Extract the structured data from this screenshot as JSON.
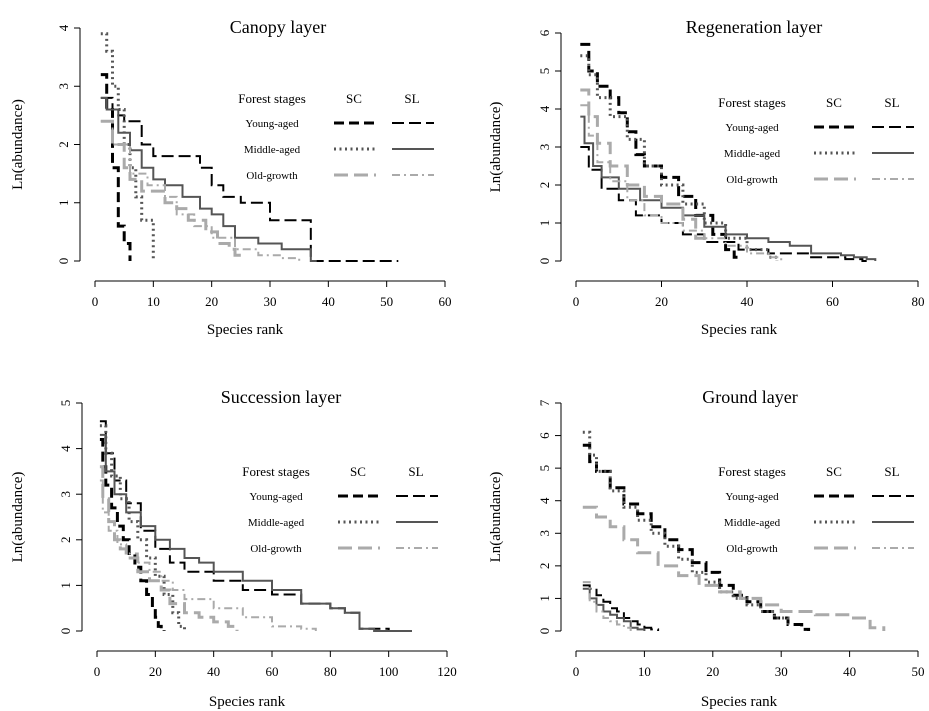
{
  "chart_data": [
    {
      "type": "line",
      "title": "Canopy layer",
      "xlabel": "Species rank",
      "ylabel": "Ln(abundance)",
      "xlim": [
        0,
        60
      ],
      "ylim": [
        0,
        4
      ],
      "xticks": [
        "0",
        "10",
        "20",
        "30",
        "40",
        "50",
        "60"
      ],
      "yticks": [
        "0",
        "1",
        "2",
        "3",
        "4"
      ],
      "legend": {
        "title": "Forest stages",
        "col_sc": "SC",
        "col_sl": "SL",
        "stages": [
          "Young-aged",
          "Middle-aged",
          "Old-growth"
        ]
      },
      "series": [
        {
          "stage": "Young-aged",
          "method": "SC",
          "color": "#000000",
          "x": [
            1,
            2,
            3,
            4,
            5,
            6
          ],
          "y": [
            3.2,
            2.6,
            1.6,
            0.6,
            0.3,
            0
          ]
        },
        {
          "stage": "Young-aged",
          "method": "SL",
          "color": "#000000",
          "x": [
            1,
            3,
            5,
            8,
            10,
            14,
            18,
            20,
            22,
            25,
            30,
            36,
            37,
            40,
            52
          ],
          "y": [
            2.8,
            2.5,
            2.4,
            2.0,
            1.8,
            1.8,
            1.6,
            1.3,
            1.1,
            1.0,
            0.7,
            0.7,
            0.0,
            0.0,
            0.0
          ]
        },
        {
          "stage": "Middle-aged",
          "method": "SC",
          "color": "#555555",
          "x": [
            1,
            2,
            3,
            4,
            5,
            6,
            7,
            8,
            10
          ],
          "y": [
            3.9,
            3.6,
            3.0,
            2.6,
            2.0,
            1.6,
            1.1,
            0.7,
            0
          ]
        },
        {
          "stage": "Middle-aged",
          "method": "SL",
          "color": "#555555",
          "x": [
            1,
            2,
            4,
            6,
            8,
            10,
            12,
            15,
            18,
            20,
            22,
            24,
            28,
            32,
            36,
            37,
            38
          ],
          "y": [
            2.8,
            2.6,
            2.2,
            1.9,
            1.6,
            1.4,
            1.3,
            1.1,
            0.9,
            0.8,
            0.6,
            0.4,
            0.3,
            0.2,
            0.2,
            0.0,
            0.0
          ]
        },
        {
          "stage": "Old-growth",
          "method": "SC",
          "color": "#aaaaaa",
          "x": [
            1,
            3,
            5,
            6,
            8,
            10,
            12,
            14,
            16,
            19,
            21,
            23,
            24,
            25
          ],
          "y": [
            2.4,
            2.0,
            1.6,
            1.4,
            1.2,
            1.2,
            1.0,
            0.9,
            0.7,
            0.5,
            0.3,
            0.2,
            0.1,
            0.0
          ]
        },
        {
          "stage": "Old-growth",
          "method": "SL",
          "color": "#aaaaaa",
          "x": [
            1,
            3,
            6,
            9,
            12,
            14,
            17,
            20,
            24,
            28,
            32,
            35
          ],
          "y": [
            2.4,
            2.0,
            1.5,
            1.3,
            1.1,
            0.8,
            0.6,
            0.4,
            0.2,
            0.1,
            0.05,
            0.0
          ]
        }
      ]
    },
    {
      "type": "line",
      "title": "Regeneration layer",
      "xlabel": "Species rank",
      "ylabel": "Ln(abundance)",
      "xlim": [
        0,
        80
      ],
      "ylim": [
        0,
        6
      ],
      "xticks": [
        "0",
        "20",
        "40",
        "60",
        "80"
      ],
      "yticks": [
        "0",
        "1",
        "2",
        "3",
        "4",
        "5",
        "6"
      ],
      "legend": {
        "title": "Forest stages",
        "col_sc": "SC",
        "col_sl": "SL",
        "stages": [
          "Young-aged",
          "Middle-aged",
          "Old-growth"
        ]
      },
      "series": [
        {
          "stage": "Young-aged",
          "method": "SC",
          "color": "#000000",
          "x": [
            1,
            3,
            5,
            8,
            10,
            12,
            14,
            16,
            20,
            24,
            28,
            32,
            35,
            37,
            38
          ],
          "y": [
            5.7,
            5.0,
            4.6,
            4.3,
            3.9,
            3.4,
            2.8,
            2.5,
            2.2,
            1.7,
            1.2,
            0.7,
            0.3,
            0.1,
            0.0
          ]
        },
        {
          "stage": "Young-aged",
          "method": "SL",
          "color": "#000000",
          "x": [
            1,
            3,
            6,
            10,
            14,
            20,
            25,
            30,
            38,
            45,
            55,
            63,
            65,
            67,
            68
          ],
          "y": [
            3.0,
            2.4,
            1.9,
            1.6,
            1.2,
            1.0,
            0.7,
            0.5,
            0.3,
            0.2,
            0.1,
            0.05,
            0.05,
            0.0,
            0.0
          ]
        },
        {
          "stage": "Middle-aged",
          "method": "SC",
          "color": "#555555",
          "x": [
            1,
            3,
            5,
            8,
            12,
            16,
            20,
            25,
            30,
            35,
            40,
            45,
            47
          ],
          "y": [
            5.4,
            4.9,
            4.3,
            3.8,
            3.2,
            2.5,
            2.0,
            1.5,
            1.0,
            0.6,
            0.3,
            0.1,
            0.0
          ]
        },
        {
          "stage": "Middle-aged",
          "method": "SL",
          "color": "#555555",
          "x": [
            1,
            2,
            4,
            6,
            10,
            15,
            20,
            25,
            30,
            35,
            40,
            45,
            50,
            55,
            60,
            62,
            65,
            68,
            70
          ],
          "y": [
            3.8,
            3.1,
            2.5,
            2.2,
            1.9,
            1.6,
            1.4,
            1.2,
            0.9,
            0.7,
            0.6,
            0.5,
            0.4,
            0.2,
            0.2,
            0.15,
            0.1,
            0.05,
            0.0
          ]
        },
        {
          "stage": "Old-growth",
          "method": "SC",
          "color": "#aaaaaa",
          "x": [
            1,
            3,
            5,
            8,
            12,
            16,
            20,
            25,
            28,
            30
          ],
          "y": [
            4.5,
            3.8,
            3.1,
            2.5,
            2.0,
            1.7,
            1.5,
            1.1,
            0.6,
            0.4
          ]
        },
        {
          "stage": "Old-growth",
          "method": "SL",
          "color": "#aaaaaa",
          "x": [
            1,
            3,
            5,
            8,
            12,
            16,
            20,
            25,
            30,
            35,
            40,
            45,
            48
          ],
          "y": [
            4.1,
            3.3,
            2.6,
            2.1,
            1.6,
            1.2,
            1.0,
            0.8,
            0.6,
            0.4,
            0.2,
            0.1,
            0.0
          ]
        }
      ]
    },
    {
      "type": "line",
      "title": "Succession layer",
      "xlabel": "Species rank",
      "ylabel": "Ln(abundance)",
      "xlim": [
        0,
        120
      ],
      "ylim": [
        0,
        5
      ],
      "xticks": [
        "0",
        "20",
        "40",
        "60",
        "80",
        "100",
        "120"
      ],
      "yticks": [
        "0",
        "1",
        "2",
        "3",
        "4",
        "5"
      ],
      "legend": {
        "title": "Forest stages",
        "col_sc": "SC",
        "col_sl": "SL",
        "stages": [
          "Young-aged",
          "Middle-aged",
          "Old-growth"
        ]
      },
      "series": [
        {
          "stage": "Young-aged",
          "method": "SC",
          "color": "#000000",
          "x": [
            1,
            2,
            3,
            5,
            7,
            9,
            11,
            13,
            15,
            17,
            19,
            20,
            21,
            22,
            23
          ],
          "y": [
            4.2,
            3.6,
            3.2,
            2.7,
            2.3,
            2.0,
            1.7,
            1.4,
            1.1,
            0.8,
            0.5,
            0.3,
            0.1,
            0.05,
            0.0
          ]
        },
        {
          "stage": "Young-aged",
          "method": "SL",
          "color": "#000000",
          "x": [
            1,
            3,
            6,
            10,
            15,
            20,
            25,
            30,
            40,
            50,
            60,
            70,
            80,
            85,
            90,
            100,
            106
          ],
          "y": [
            4.6,
            3.9,
            3.3,
            2.8,
            2.2,
            1.8,
            1.5,
            1.3,
            1.1,
            0.9,
            0.8,
            0.6,
            0.5,
            0.4,
            0.05,
            0.0,
            0.0
          ]
        },
        {
          "stage": "Middle-aged",
          "method": "SC",
          "color": "#555555",
          "x": [
            1,
            3,
            5,
            8,
            11,
            14,
            17,
            20,
            23,
            26,
            28,
            30
          ],
          "y": [
            4.5,
            3.9,
            3.4,
            2.9,
            2.4,
            2.0,
            1.6,
            1.2,
            0.8,
            0.4,
            0.1,
            0.0
          ]
        },
        {
          "stage": "Middle-aged",
          "method": "SL",
          "color": "#555555",
          "x": [
            1,
            3,
            6,
            10,
            15,
            20,
            25,
            30,
            35,
            40,
            50,
            60,
            70,
            80,
            85,
            90,
            95,
            104,
            108
          ],
          "y": [
            4.3,
            3.5,
            3.0,
            2.6,
            2.3,
            2.0,
            1.8,
            1.6,
            1.5,
            1.3,
            1.1,
            0.9,
            0.6,
            0.5,
            0.4,
            0.05,
            0.0,
            0.0,
            0.0
          ]
        },
        {
          "stage": "Old-growth",
          "method": "SC",
          "color": "#aaaaaa",
          "x": [
            1,
            2,
            4,
            6,
            8,
            10,
            14,
            18,
            22,
            25,
            30,
            35,
            40,
            45,
            48
          ],
          "y": [
            3.6,
            2.9,
            2.4,
            2.0,
            1.8,
            1.6,
            1.3,
            1.1,
            0.9,
            0.6,
            0.4,
            0.3,
            0.2,
            0.1,
            0.0
          ]
        },
        {
          "stage": "Old-growth",
          "method": "SL",
          "color": "#aaaaaa",
          "x": [
            1,
            2,
            4,
            7,
            10,
            14,
            18,
            22,
            26,
            30,
            40,
            50,
            60,
            70,
            75
          ],
          "y": [
            3.3,
            2.6,
            2.2,
            1.9,
            1.7,
            1.5,
            1.3,
            1.1,
            0.9,
            0.7,
            0.5,
            0.3,
            0.1,
            0.05,
            0.0
          ]
        }
      ]
    },
    {
      "type": "line",
      "title": "Ground layer",
      "xlabel": "Species rank",
      "ylabel": "Ln(abundance)",
      "xlim": [
        0,
        50
      ],
      "ylim": [
        0,
        7
      ],
      "xticks": [
        "0",
        "10",
        "20",
        "30",
        "40",
        "50"
      ],
      "yticks": [
        "0",
        "1",
        "2",
        "3",
        "4",
        "5",
        "6",
        "7"
      ],
      "legend": {
        "title": "Forest stages",
        "col_sc": "SC",
        "col_sl": "SL",
        "stages": [
          "Young-aged",
          "Middle-aged",
          "Old-growth"
        ]
      },
      "series": [
        {
          "stage": "Young-aged",
          "method": "SC",
          "color": "#000000",
          "x": [
            1,
            2,
            3,
            5,
            7,
            9,
            11,
            13,
            15,
            17,
            19,
            21,
            23,
            25,
            27,
            29,
            31,
            33,
            34
          ],
          "y": [
            5.7,
            5.2,
            4.9,
            4.4,
            3.9,
            3.6,
            3.2,
            2.8,
            2.5,
            2.1,
            1.8,
            1.4,
            1.1,
            0.9,
            0.6,
            0.4,
            0.2,
            0.05,
            0.0
          ]
        },
        {
          "stage": "Young-aged",
          "method": "SL",
          "color": "#000000",
          "x": [
            1,
            2,
            3,
            4,
            5,
            6,
            7,
            8,
            9,
            10,
            11,
            12
          ],
          "y": [
            1.4,
            1.3,
            1.1,
            0.9,
            0.7,
            0.6,
            0.4,
            0.3,
            0.2,
            0.1,
            0.05,
            0.0
          ]
        },
        {
          "stage": "Middle-aged",
          "method": "SC",
          "color": "#555555",
          "x": [
            1,
            2,
            3,
            5,
            7,
            9,
            11,
            13,
            15,
            17,
            19,
            21,
            23,
            25,
            27,
            29,
            31
          ],
          "y": [
            6.1,
            5.4,
            4.9,
            4.3,
            3.8,
            3.4,
            3.0,
            2.6,
            2.2,
            1.8,
            1.5,
            1.2,
            1.0,
            0.8,
            0.6,
            0.4,
            0.2
          ]
        },
        {
          "stage": "Middle-aged",
          "method": "SL",
          "color": "#555555",
          "x": [
            1,
            2,
            3,
            4,
            5,
            6,
            7,
            8,
            9,
            10
          ],
          "y": [
            1.3,
            1.0,
            0.8,
            0.6,
            0.5,
            0.4,
            0.3,
            0.1,
            0.05,
            0.0
          ]
        },
        {
          "stage": "Old-growth",
          "method": "SC",
          "color": "#aaaaaa",
          "x": [
            1,
            3,
            5,
            7,
            9,
            12,
            15,
            18,
            21,
            24,
            27,
            30,
            35,
            40,
            43,
            45
          ],
          "y": [
            3.8,
            3.5,
            3.2,
            2.8,
            2.4,
            2.0,
            1.7,
            1.4,
            1.2,
            1.0,
            0.8,
            0.6,
            0.5,
            0.4,
            0.1,
            0.0
          ]
        },
        {
          "stage": "Old-growth",
          "method": "SL",
          "color": "#aaaaaa",
          "x": [
            1,
            2,
            3,
            4,
            5,
            6,
            7,
            8
          ],
          "y": [
            1.5,
            0.9,
            0.6,
            0.4,
            0.3,
            0.2,
            0.1,
            0.0
          ]
        }
      ]
    }
  ]
}
